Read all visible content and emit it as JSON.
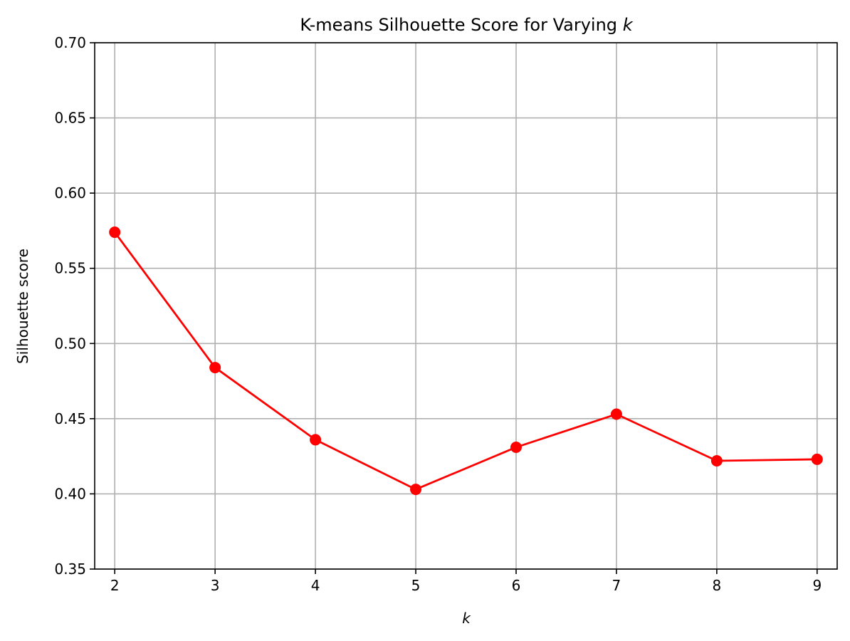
{
  "chart_data": {
    "type": "line",
    "title": "K-means Silhouette Score for Varying",
    "title_var": "k",
    "xlabel": "k",
    "ylabel": "Silhouette score",
    "x": [
      2,
      3,
      4,
      5,
      6,
      7,
      8,
      9
    ],
    "series": [
      {
        "values": [
          0.574,
          0.484,
          0.436,
          0.403,
          0.431,
          0.453,
          0.422,
          0.423
        ]
      }
    ],
    "xlim": [
      1.8,
      9.2
    ],
    "ylim": [
      0.35,
      0.7
    ],
    "xticks": [
      2,
      3,
      4,
      5,
      6,
      7,
      8,
      9
    ],
    "yticks": [
      0.35,
      0.4,
      0.45,
      0.5,
      0.55,
      0.6,
      0.65,
      0.7
    ],
    "grid": true,
    "line_color": "#ff0000",
    "marker": "circle"
  }
}
